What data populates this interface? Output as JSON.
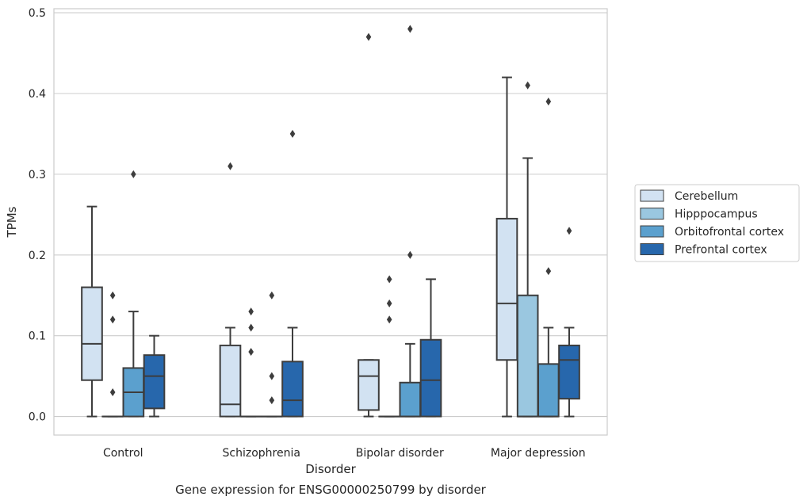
{
  "chart_data": {
    "type": "box",
    "title": "Gene expression for ENSG00000250799 by disorder",
    "xlabel": "Disorder",
    "ylabel": "TPMs",
    "ylim": [
      -0.023,
      0.505
    ],
    "yticks": [
      "0.0",
      "0.1",
      "0.2",
      "0.3",
      "0.4",
      "0.5"
    ],
    "grid": "horizontal",
    "legend_position": "right",
    "categories": [
      "Control",
      "Schizophrenia",
      "Bipolar disorder",
      "Major depression"
    ],
    "series": [
      {
        "name": "Cerebellum",
        "color": "#d2e2f2",
        "boxes": [
          {
            "whislo": 0.0,
            "q1": 0.045,
            "med": 0.09,
            "q3": 0.16,
            "whishi": 0.26,
            "fliers": []
          },
          {
            "whislo": 0.0,
            "q1": 0.0,
            "med": 0.015,
            "q3": 0.088,
            "whishi": 0.11,
            "fliers": [
              0.31
            ]
          },
          {
            "whislo": 0.0,
            "q1": 0.008,
            "med": 0.05,
            "q3": 0.07,
            "whishi": 0.07,
            "fliers": [
              0.47
            ]
          },
          {
            "whislo": 0.0,
            "q1": 0.07,
            "med": 0.14,
            "q3": 0.245,
            "whishi": 0.42,
            "fliers": []
          }
        ]
      },
      {
        "name": "Hipppocampus",
        "color": "#9ac7e0",
        "boxes": [
          {
            "whislo": 0.0,
            "q1": 0.0,
            "med": 0.0,
            "q3": 0.0,
            "whishi": 0.0,
            "fliers": [
              0.03,
              0.12,
              0.15
            ]
          },
          {
            "whislo": 0.0,
            "q1": 0.0,
            "med": 0.0,
            "q3": 0.0,
            "whishi": 0.0,
            "fliers": [
              0.08,
              0.11,
              0.13
            ]
          },
          {
            "whislo": 0.0,
            "q1": 0.0,
            "med": 0.0,
            "q3": 0.0,
            "whishi": 0.0,
            "fliers": [
              0.12,
              0.14,
              0.17
            ]
          },
          {
            "whislo": 0.0,
            "q1": 0.0,
            "med": 0.0,
            "q3": 0.15,
            "whishi": 0.32,
            "fliers": [
              0.41
            ]
          }
        ]
      },
      {
        "name": "Orbitofrontal cortex",
        "color": "#5ba0ce",
        "boxes": [
          {
            "whislo": 0.0,
            "q1": 0.0,
            "med": 0.03,
            "q3": 0.06,
            "whishi": 0.13,
            "fliers": [
              0.3
            ]
          },
          {
            "whislo": 0.0,
            "q1": 0.0,
            "med": 0.0,
            "q3": 0.0,
            "whishi": 0.0,
            "fliers": [
              0.02,
              0.05,
              0.15
            ]
          },
          {
            "whislo": 0.0,
            "q1": 0.0,
            "med": 0.0,
            "q3": 0.042,
            "whishi": 0.09,
            "fliers": [
              0.2,
              0.48
            ]
          },
          {
            "whislo": 0.0,
            "q1": 0.0,
            "med": 0.0,
            "q3": 0.065,
            "whishi": 0.11,
            "fliers": [
              0.18,
              0.39
            ]
          }
        ]
      },
      {
        "name": "Prefrontal cortex",
        "color": "#2767ac",
        "boxes": [
          {
            "whislo": 0.0,
            "q1": 0.01,
            "med": 0.05,
            "q3": 0.076,
            "whishi": 0.1,
            "fliers": []
          },
          {
            "whislo": 0.0,
            "q1": 0.0,
            "med": 0.02,
            "q3": 0.068,
            "whishi": 0.11,
            "fliers": [
              0.35
            ]
          },
          {
            "whislo": 0.0,
            "q1": 0.0,
            "med": 0.045,
            "q3": 0.095,
            "whishi": 0.17,
            "fliers": []
          },
          {
            "whislo": 0.0,
            "q1": 0.022,
            "med": 0.07,
            "q3": 0.088,
            "whishi": 0.11,
            "fliers": [
              0.23
            ]
          }
        ]
      }
    ]
  }
}
